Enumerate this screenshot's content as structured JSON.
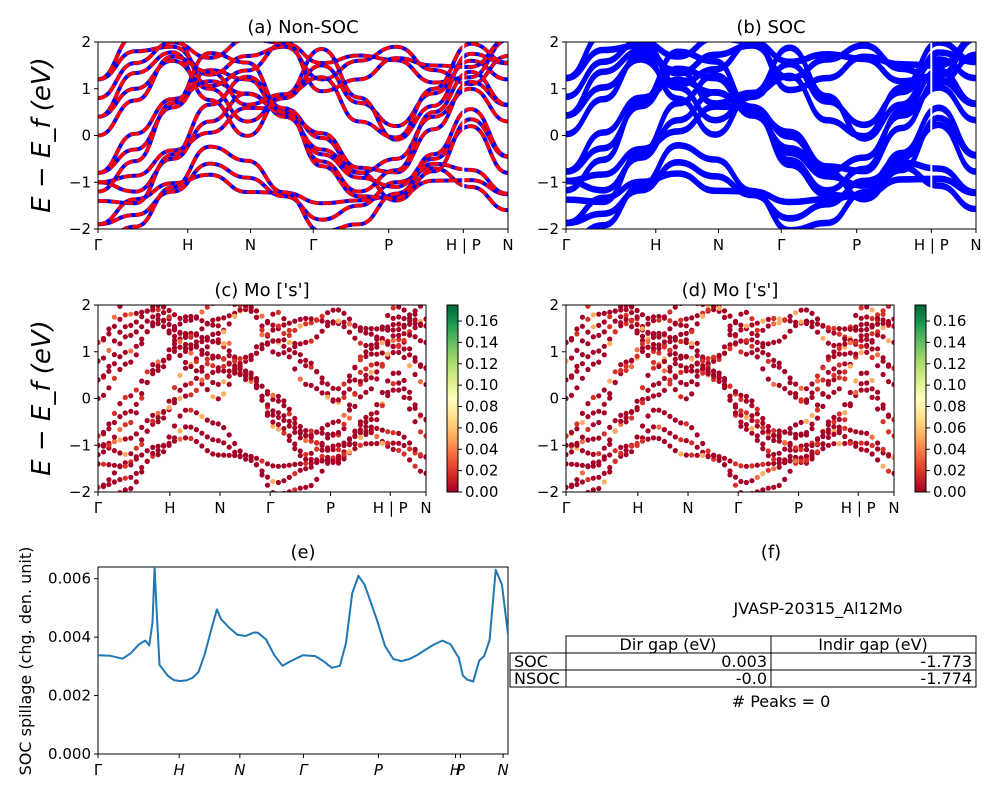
{
  "colors": {
    "nonsoc_blue": "#0000ff",
    "nonsoc_red": "#ff0000",
    "soc_blue": "#0000ff",
    "spillage_line": "#1f77b4",
    "colormap": [
      "#a50026",
      "#d73027",
      "#f46d43",
      "#fdae61",
      "#fee08b",
      "#ffffbf",
      "#d9ef8b",
      "#a6d96a",
      "#66bd63",
      "#1a9850",
      "#006837"
    ]
  },
  "ylabel_energy": "E − E_f (eV)",
  "chart_data": [
    {
      "id": "a",
      "type": "line",
      "title": "(a) Non-SOC",
      "ylabel": "E − E_f (eV)",
      "ylim": [
        -2,
        2
      ],
      "yticks": [
        "2",
        "1",
        "0",
        "−1",
        "−2"
      ],
      "kpath_ticks": [
        {
          "label": "Γ",
          "pos": 0.0
        },
        {
          "label": "H",
          "pos": 0.219
        },
        {
          "label": "N",
          "pos": 0.372
        },
        {
          "label": "Γ",
          "pos": 0.525
        },
        {
          "label": "P",
          "pos": 0.709
        },
        {
          "label": "H | P",
          "pos": 0.891
        },
        {
          "label": "N",
          "pos": 1.0
        }
      ],
      "series_note": "Blue: spin channel 1, Red dashed: spin channel 2",
      "bands_sample": [
        [
          -1.9,
          -1.7,
          -1.2,
          -0.6,
          -0.9,
          -1.3,
          -1.8,
          -1.5,
          -1.0,
          -0.7,
          -1.1,
          -1.6
        ],
        [
          -1.0,
          -1.2,
          -0.5,
          0.3,
          0.9,
          0.5,
          -0.4,
          -0.9,
          -1.1,
          -0.5,
          0.2,
          -0.8
        ],
        [
          -0.8,
          -0.3,
          0.6,
          1.4,
          1.2,
          0.4,
          -0.3,
          -0.8,
          -0.5,
          0.4,
          1.0,
          0.3
        ],
        [
          0.4,
          1.0,
          1.6,
          1.0,
          0.3,
          0.8,
          1.5,
          0.7,
          0.2,
          0.9,
          1.6,
          1.2
        ],
        [
          1.2,
          1.8,
          1.9,
          1.3,
          1.7,
          1.9,
          1.2,
          1.6,
          1.9,
          1.4,
          1.1,
          1.7
        ]
      ]
    },
    {
      "id": "b",
      "type": "line",
      "title": "(b) SOC",
      "ylim": [
        -2,
        2
      ],
      "yticks": [
        "2",
        "1",
        "0",
        "−1",
        "−2"
      ],
      "kpath_ticks": [
        {
          "label": "Γ",
          "pos": 0.0
        },
        {
          "label": "H",
          "pos": 0.219
        },
        {
          "label": "N",
          "pos": 0.372
        },
        {
          "label": "Γ",
          "pos": 0.525
        },
        {
          "label": "P",
          "pos": 0.709
        },
        {
          "label": "H | P",
          "pos": 0.891
        },
        {
          "label": "N",
          "pos": 1.0
        }
      ],
      "bands_sample": [
        [
          -1.9,
          -1.7,
          -1.2,
          -0.6,
          -0.9,
          -1.3,
          -1.8,
          -1.5,
          -1.0,
          -0.7,
          -1.1,
          -1.6
        ],
        [
          -1.0,
          -1.2,
          -0.5,
          0.3,
          0.9,
          0.5,
          -0.4,
          -0.9,
          -1.1,
          -0.5,
          0.2,
          -0.8
        ],
        [
          -0.8,
          -0.3,
          0.6,
          1.4,
          1.2,
          0.4,
          -0.3,
          -0.8,
          -0.5,
          0.4,
          1.0,
          0.3
        ],
        [
          0.4,
          1.0,
          1.6,
          1.0,
          0.3,
          0.8,
          1.5,
          0.7,
          0.2,
          0.9,
          1.6,
          1.2
        ],
        [
          1.2,
          1.8,
          1.9,
          1.3,
          1.7,
          1.9,
          1.2,
          1.6,
          1.9,
          1.4,
          1.1,
          1.7
        ]
      ]
    },
    {
      "id": "c",
      "type": "scatter",
      "title": "(c)  Mo ['s']",
      "ylabel": "E − E_f (eV)",
      "ylim": [
        -2,
        2
      ],
      "yticks": [
        "2",
        "1",
        "0",
        "−1",
        "−2"
      ],
      "kpath_ticks": [
        {
          "label": "Γ",
          "pos": 0.0
        },
        {
          "label": "H",
          "pos": 0.219
        },
        {
          "label": "N",
          "pos": 0.372
        },
        {
          "label": "Γ",
          "pos": 0.525
        },
        {
          "label": "P",
          "pos": 0.709
        },
        {
          "label": "H | P",
          "pos": 0.891
        },
        {
          "label": "N",
          "pos": 1.0
        }
      ],
      "colorbar": {
        "min": 0.0,
        "max": 0.175,
        "ticks": [
          "0.16",
          "0.14",
          "0.12",
          "0.10",
          "0.08",
          "0.06",
          "0.04",
          "0.02",
          "0.00"
        ]
      }
    },
    {
      "id": "d",
      "type": "scatter",
      "title": "(d) Mo ['s']",
      "ylim": [
        -2,
        2
      ],
      "yticks": [
        "2",
        "1",
        "0",
        "−1",
        "−2"
      ],
      "kpath_ticks": [
        {
          "label": "Γ",
          "pos": 0.0
        },
        {
          "label": "H",
          "pos": 0.219
        },
        {
          "label": "N",
          "pos": 0.372
        },
        {
          "label": "Γ",
          "pos": 0.525
        },
        {
          "label": "P",
          "pos": 0.709
        },
        {
          "label": "H | P",
          "pos": 0.891
        },
        {
          "label": "N",
          "pos": 1.0
        }
      ],
      "colorbar": {
        "min": 0.0,
        "max": 0.175,
        "ticks": [
          "0.16",
          "0.14",
          "0.12",
          "0.10",
          "0.08",
          "0.06",
          "0.04",
          "0.02",
          "0.00"
        ]
      }
    },
    {
      "id": "e",
      "type": "line",
      "title": "(e)",
      "ylabel": "SOC spillage (chg. den. unit)",
      "ylim": [
        0,
        0.0064
      ],
      "yticks": [
        "0.006",
        "0.004",
        "0.002",
        "0.000"
      ],
      "ytick_values": [
        0.006,
        0.004,
        0.002,
        0.0
      ],
      "kpath_ticks": [
        {
          "label": "Γ",
          "pos": 0.0
        },
        {
          "label": "H",
          "pos": 0.198
        },
        {
          "label": "N",
          "pos": 0.346
        },
        {
          "label": "Γ",
          "pos": 0.501
        },
        {
          "label": "P",
          "pos": 0.684
        },
        {
          "label": "H",
          "pos": 0.872
        },
        {
          "label": "P",
          "pos": 0.884
        },
        {
          "label": "N",
          "pos": 0.988
        }
      ],
      "x": [
        0.0,
        0.03,
        0.06,
        0.08,
        0.1,
        0.115,
        0.125,
        0.133,
        0.138,
        0.142,
        0.15,
        0.17,
        0.185,
        0.2,
        0.215,
        0.23,
        0.245,
        0.26,
        0.275,
        0.29,
        0.3,
        0.32,
        0.34,
        0.36,
        0.38,
        0.39,
        0.41,
        0.43,
        0.45,
        0.47,
        0.5,
        0.53,
        0.55,
        0.57,
        0.59,
        0.605,
        0.62,
        0.635,
        0.65,
        0.665,
        0.68,
        0.7,
        0.72,
        0.74,
        0.76,
        0.78,
        0.8,
        0.82,
        0.84,
        0.86,
        0.875,
        0.88,
        0.89,
        0.9,
        0.915,
        0.93,
        0.942,
        0.955,
        0.97,
        0.985,
        1.0
      ],
      "values": [
        0.00338,
        0.00336,
        0.00326,
        0.00345,
        0.00375,
        0.00388,
        0.00372,
        0.0045,
        0.0064,
        0.0052,
        0.00305,
        0.00268,
        0.00253,
        0.0025,
        0.00252,
        0.0026,
        0.0028,
        0.0034,
        0.0042,
        0.00495,
        0.00462,
        0.00432,
        0.00408,
        0.00404,
        0.00416,
        0.00415,
        0.00392,
        0.00338,
        0.00302,
        0.00318,
        0.00338,
        0.00335,
        0.00318,
        0.00295,
        0.00302,
        0.0038,
        0.0055,
        0.0061,
        0.0058,
        0.0052,
        0.0046,
        0.0037,
        0.00325,
        0.00318,
        0.00325,
        0.0034,
        0.00358,
        0.00375,
        0.00388,
        0.00375,
        0.0034,
        0.0033,
        0.00268,
        0.00255,
        0.00248,
        0.0032,
        0.00335,
        0.0039,
        0.0063,
        0.0058,
        0.0041
      ]
    }
  ],
  "panel_f": {
    "title": "(f)",
    "subtitle": "JVASP-20315_Al12Mo",
    "table": {
      "headers": [
        "Dir gap (eV)",
        "Indir gap (eV)"
      ],
      "rows": [
        {
          "label": "SOC",
          "dir": "0.003",
          "indir": "-1.773"
        },
        {
          "label": "NSOC",
          "dir": "-0.0",
          "indir": "-1.774"
        }
      ]
    },
    "peaks": "# Peaks = 0"
  }
}
